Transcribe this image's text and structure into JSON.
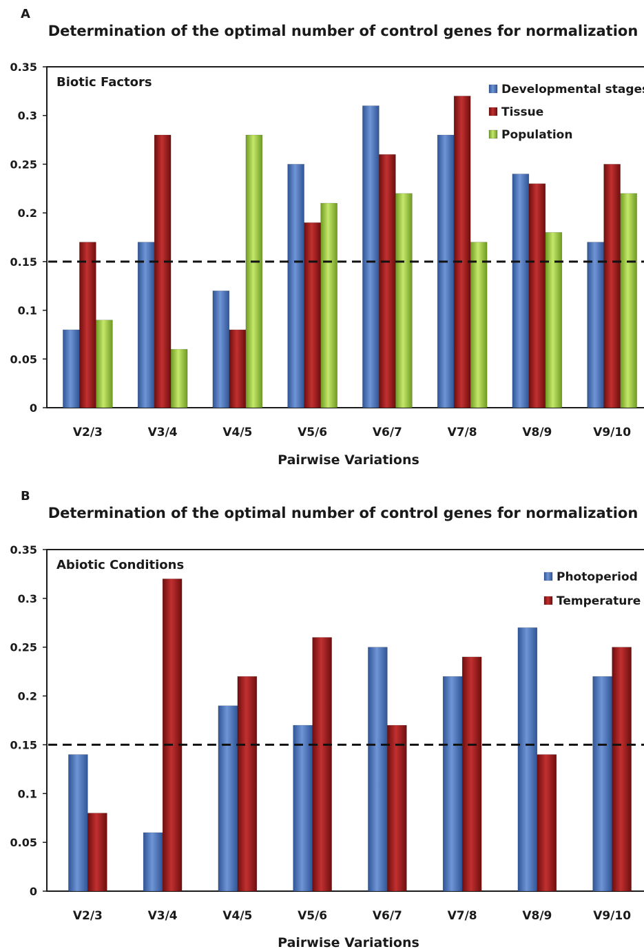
{
  "chart_data": [
    {
      "type": "bar",
      "panel_label": "A",
      "title": "Determination of the optimal number of control genes for normalization",
      "subtitle": "Biotic Factors",
      "xlabel": "Pairwise Variations",
      "ylabel": "",
      "ylim": [
        0,
        0.35
      ],
      "yticks": [
        "0",
        "0.05",
        "0.1",
        "0.15",
        "0.2",
        "0.25",
        "0.3",
        "0.35"
      ],
      "grid": false,
      "legend": "top-right",
      "threshold": 0.15,
      "categories": [
        "V2/3",
        "V3/4",
        "V4/5",
        "V5/6",
        "V6/7",
        "V7/8",
        "V8/9",
        "V9/10"
      ],
      "series": [
        {
          "name": "Developmental stages",
          "color": "#4472c4",
          "values": [
            0.08,
            0.17,
            0.12,
            0.25,
            0.31,
            0.28,
            0.24,
            0.17
          ]
        },
        {
          "name": "Tissue",
          "color": "#9b1b1b",
          "values": [
            0.17,
            0.28,
            0.08,
            0.19,
            0.26,
            0.32,
            0.23,
            0.25
          ]
        },
        {
          "name": "Population",
          "color": "#9acd3c",
          "values": [
            0.09,
            0.06,
            0.28,
            0.21,
            0.22,
            0.17,
            0.18,
            0.22
          ]
        }
      ]
    },
    {
      "type": "bar",
      "panel_label": "B",
      "title": "Determination of the optimal number of control genes for normalization",
      "subtitle": "Abiotic Conditions",
      "xlabel": "Pairwise Variations",
      "ylabel": "",
      "ylim": [
        0,
        0.35
      ],
      "yticks": [
        "0",
        "0.05",
        "0.1",
        "0.15",
        "0.2",
        "0.25",
        "0.3",
        "0.35"
      ],
      "grid": false,
      "legend": "top-right",
      "threshold": 0.15,
      "categories": [
        "V2/3",
        "V3/4",
        "V4/5",
        "V5/6",
        "V6/7",
        "V7/8",
        "V8/9",
        "V9/10"
      ],
      "series": [
        {
          "name": "Photoperiod",
          "color": "#4472c4",
          "values": [
            0.14,
            0.06,
            0.19,
            0.17,
            0.25,
            0.22,
            0.27,
            0.22
          ]
        },
        {
          "name": "Temperature",
          "color": "#9b1b1b",
          "values": [
            0.08,
            0.32,
            0.22,
            0.26,
            0.17,
            0.24,
            0.14,
            0.25
          ]
        }
      ]
    }
  ]
}
